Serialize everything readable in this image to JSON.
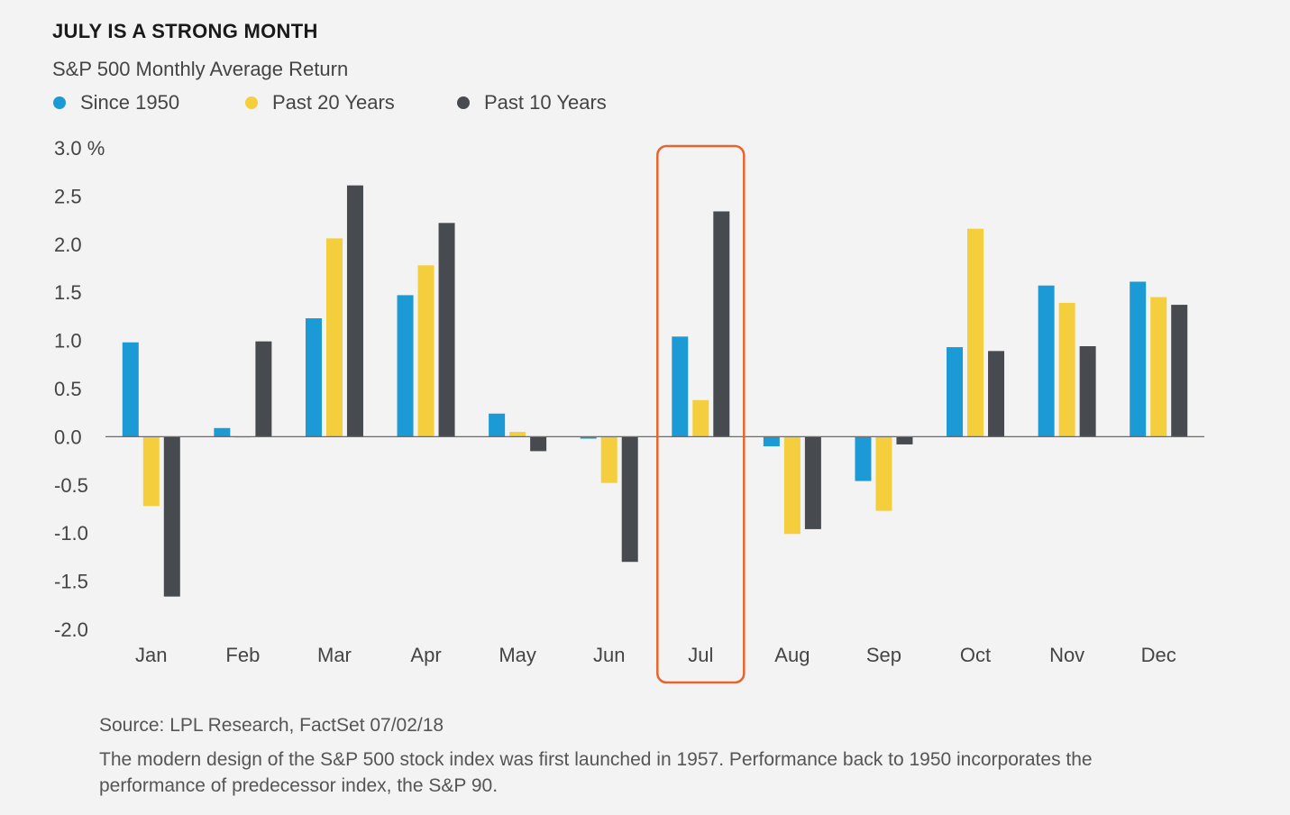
{
  "chart_data": {
    "type": "bar",
    "title": "JULY IS A STRONG MONTH",
    "subtitle": "S&P 500 Monthly Average Return",
    "categories": [
      "Jan",
      "Feb",
      "Mar",
      "Apr",
      "May",
      "Jun",
      "Jul",
      "Aug",
      "Sep",
      "Oct",
      "Nov",
      "Dec"
    ],
    "series": [
      {
        "name": "Since 1950",
        "color": "#1b9ad6",
        "values": [
          0.98,
          0.09,
          1.23,
          1.47,
          0.24,
          -0.02,
          1.04,
          -0.1,
          -0.46,
          0.93,
          1.57,
          1.61
        ]
      },
      {
        "name": "Past 20 Years",
        "color": "#f5ce3e",
        "values": [
          -0.72,
          -0.01,
          2.06,
          1.78,
          0.05,
          -0.48,
          0.38,
          -1.01,
          -0.77,
          2.16,
          1.39,
          1.45
        ]
      },
      {
        "name": "Past 10 Years",
        "color": "#474b50",
        "values": [
          -1.66,
          0.99,
          2.61,
          2.22,
          -0.15,
          -1.3,
          2.34,
          -0.96,
          -0.08,
          0.89,
          0.94,
          1.37
        ]
      }
    ],
    "ylim": [
      -2.0,
      3.0
    ],
    "yticks": [
      3.0,
      2.5,
      2.0,
      1.5,
      1.0,
      0.5,
      0.0,
      -0.5,
      -1.0,
      -1.5,
      -2.0
    ],
    "ytick_labels": [
      "3.0 %",
      "2.5",
      "2.0",
      "1.5",
      "1.0",
      "0.5",
      "0.0",
      "-0.5",
      "-1.0",
      "-1.5",
      "-2.0"
    ],
    "xlabel": "",
    "ylabel": "",
    "grid": false,
    "highlight": {
      "category": "Jul",
      "color": "#e8642c"
    }
  },
  "footer": {
    "source": "Source: LPL Research, FactSet   07/02/18",
    "note": "The modern design of the S&P 500 stock index was first launched in 1957. Performance back to 1950 incorporates the performance of predecessor index, the S&P 90."
  }
}
